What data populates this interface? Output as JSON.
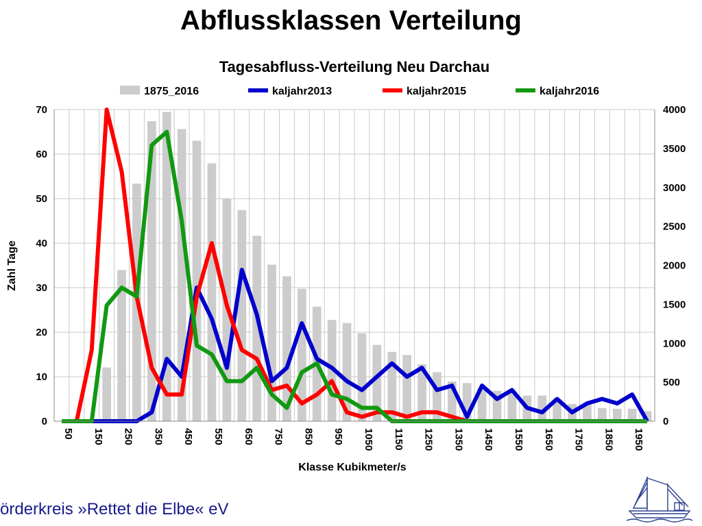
{
  "slide": {
    "title": "Abflussklassen Verteilung",
    "footer": "örderkreis »Rettet die Elbe« eV"
  },
  "colors": {
    "bar": "#cccccc",
    "kaljahr2013": "#0000cc",
    "kaljahr2015": "#ff0000",
    "kaljahr2016": "#119911",
    "grid": "#c8c8c8",
    "footer": "#1a1a8c"
  },
  "chart_data": {
    "type": "bar",
    "title": "Tagesabfluss-Verteilung Neu Darchau",
    "xlabel": "Klasse Kubikmeter/s",
    "ylabel": "Zahl Tage",
    "ylim": [
      0,
      70
    ],
    "yticks": [
      0,
      10,
      20,
      30,
      40,
      50,
      60,
      70
    ],
    "y2lim": [
      0,
      4000
    ],
    "y2ticks": [
      0,
      500,
      1000,
      1500,
      2000,
      2500,
      3000,
      3500,
      4000
    ],
    "grid": true,
    "legend": "top",
    "xticklabels": [
      "50",
      "150",
      "250",
      "350",
      "450",
      "550",
      "650",
      "750",
      "850",
      "950",
      "1050",
      "1150",
      "1250",
      "1350",
      "1450",
      "1550",
      "1650",
      "1750",
      "1850",
      "1950"
    ],
    "categories": [
      50,
      100,
      150,
      200,
      250,
      300,
      350,
      400,
      450,
      500,
      550,
      600,
      650,
      700,
      750,
      800,
      850,
      900,
      950,
      1000,
      1050,
      1100,
      1150,
      1200,
      1250,
      1300,
      1350,
      1400,
      1450,
      1500,
      1550,
      1600,
      1650,
      1700,
      1750,
      1800,
      1850,
      1900,
      1950,
      2000
    ],
    "series": [
      {
        "name": "1875_2016",
        "type": "bar",
        "axis": "right",
        "values": [
          0,
          0,
          0,
          690,
          1940,
          3050,
          3850,
          3970,
          3750,
          3600,
          3310,
          2860,
          2710,
          2380,
          2010,
          1860,
          1700,
          1470,
          1300,
          1260,
          1130,
          980,
          890,
          850,
          730,
          630,
          510,
          490,
          420,
          390,
          370,
          330,
          330,
          280,
          220,
          210,
          170,
          160,
          160,
          130
        ]
      },
      {
        "name": "kaljahr2013",
        "type": "line",
        "axis": "left",
        "values": [
          0,
          0,
          0,
          0,
          0,
          0,
          2,
          14,
          10,
          30,
          23,
          12,
          34,
          24,
          9,
          12,
          22,
          14,
          12,
          9,
          7,
          10,
          13,
          10,
          12,
          7,
          8,
          1,
          8,
          5,
          7,
          3,
          2,
          5,
          2,
          4,
          5,
          4,
          6,
          0
        ]
      },
      {
        "name": "kaljahr2015",
        "type": "line",
        "axis": "left",
        "values": [
          0,
          0,
          16,
          70,
          56,
          28,
          12,
          6,
          6,
          28,
          40,
          26,
          16,
          14,
          7,
          8,
          4,
          6,
          9,
          2,
          1,
          2,
          2,
          1,
          2,
          2,
          1,
          0,
          0,
          0,
          0,
          0,
          0,
          0,
          0,
          0,
          0,
          0,
          0,
          0
        ]
      },
      {
        "name": "kaljahr2016",
        "type": "line",
        "axis": "left",
        "values": [
          0,
          0,
          0,
          26,
          30,
          28,
          62,
          65,
          45,
          17,
          15,
          9,
          9,
          12,
          6,
          3,
          11,
          13,
          6,
          5,
          3,
          3,
          0,
          0,
          0,
          0,
          0,
          0,
          0,
          0,
          0,
          0,
          0,
          0,
          0,
          0,
          0,
          0,
          0,
          0
        ]
      }
    ]
  }
}
